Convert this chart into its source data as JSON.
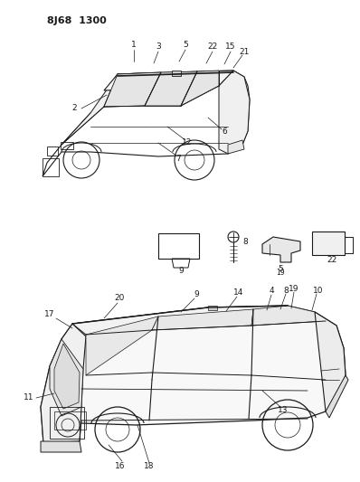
{
  "title": "8J68  1300",
  "bg": "#ffffff",
  "lc": "#1a1a1a",
  "fig_w": 3.98,
  "fig_h": 5.33,
  "dpi": 100
}
